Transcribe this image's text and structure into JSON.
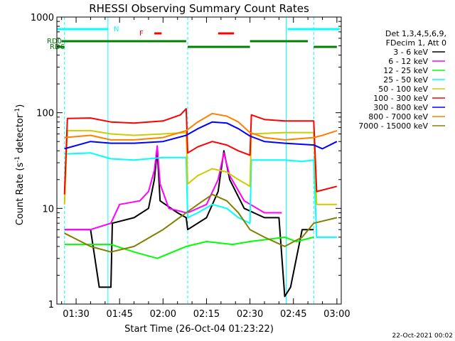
{
  "chart_data": {
    "type": "line",
    "title": "RHESSI Observing Summary Count Rates",
    "xlabel": "Start Time (26-Oct-04 01:23:22)",
    "ylabel": "Count Rate (s",
    "ylabel_sup1": "-1",
    "ylabel_mid": " detector",
    "ylabel_sup2": "-1",
    "ylabel_end": ")",
    "y_scale": "log",
    "ylim": [
      1,
      1000
    ],
    "xlim": [
      "01:23:22",
      "03:01:30"
    ],
    "y_ticks": [
      "1",
      "10",
      "100",
      "1000"
    ],
    "x_ticks": [
      "01:30",
      "01:45",
      "02:00",
      "02:15",
      "02:30",
      "02:45",
      "03:00"
    ],
    "legend_header": [
      "Det 1,3,4,5,6,9,",
      "FDecim 1, Att 0"
    ],
    "legend_position": "right",
    "footer_date": "22-Oct-2021 00:02",
    "flags": [
      {
        "label": "N",
        "color": "#00ffff",
        "segments": [
          [
            "01:23:22",
            "01:41:00"
          ],
          [
            "02:43:00",
            "03:01:00"
          ]
        ]
      },
      {
        "label": "F",
        "color": "#ff0000",
        "segments": [
          [
            "01:57:00",
            "01:59:30"
          ],
          [
            "02:19:00",
            "02:24:30"
          ]
        ]
      },
      {
        "label": "RD0",
        "color": "#008000",
        "segments": [
          [
            "01:25:00",
            "02:08:00"
          ],
          [
            "02:30:00",
            "02:50:00"
          ]
        ]
      },
      {
        "label": "RD6",
        "color": "#008000",
        "segments": [
          [
            "01:23:22",
            "01:26:00"
          ],
          [
            "02:08:30",
            "02:30:00"
          ],
          [
            "02:52:00",
            "03:00:00"
          ]
        ]
      }
    ],
    "night_intervals": [
      [
        "01:23:22",
        "01:26:00"
      ],
      [
        "01:41:00",
        "02:08:30"
      ],
      [
        "02:42:30",
        "02:52:00"
      ]
    ],
    "series": [
      {
        "name": "3 - 6 keV",
        "color": "#000000",
        "points": [
          [
            "01:26:00",
            6
          ],
          [
            "01:35:00",
            6
          ],
          [
            "01:38:00",
            1.5
          ],
          [
            "01:42:00",
            1.5
          ],
          [
            "01:42:30",
            7
          ],
          [
            "01:50:00",
            8
          ],
          [
            "01:55:00",
            10
          ],
          [
            "01:57:00",
            20
          ],
          [
            "01:58:00",
            40
          ],
          [
            "01:59:00",
            12
          ],
          [
            "02:05:00",
            9
          ],
          [
            "02:08:00",
            8
          ],
          [
            "02:08:30",
            6
          ],
          [
            "02:15:00",
            8
          ],
          [
            "02:19:00",
            15
          ],
          [
            "02:21:00",
            40
          ],
          [
            "02:23:00",
            20
          ],
          [
            "02:28:00",
            10
          ],
          [
            "02:35:00",
            8
          ],
          [
            "02:40:00",
            8
          ],
          [
            "02:42:00",
            1.2
          ],
          [
            "02:44:00",
            1.5
          ],
          [
            "02:48:00",
            6
          ],
          [
            "02:52:00",
            6
          ]
        ]
      },
      {
        "name": "6 - 12 keV",
        "color": "#ff00ff",
        "points": [
          [
            "01:26:00",
            6
          ],
          [
            "01:35:00",
            6
          ],
          [
            "01:42:00",
            7
          ],
          [
            "01:45:00",
            11
          ],
          [
            "01:52:00",
            12
          ],
          [
            "01:55:00",
            15
          ],
          [
            "01:57:00",
            25
          ],
          [
            "01:58:00",
            45
          ],
          [
            "01:59:00",
            18
          ],
          [
            "02:02:00",
            10
          ],
          [
            "02:08:00",
            9
          ],
          [
            "02:08:30",
            9
          ],
          [
            "02:15:00",
            11
          ],
          [
            "02:19:00",
            20
          ],
          [
            "02:21:00",
            38
          ],
          [
            "02:23:00",
            22
          ],
          [
            "02:28:00",
            12
          ],
          [
            "02:35:00",
            9
          ],
          [
            "02:41:00",
            9
          ]
        ]
      },
      {
        "name": "12 - 25 keV",
        "color": "#00ff00",
        "points": [
          [
            "01:26:00",
            4.2
          ],
          [
            "01:42:00",
            4.2
          ],
          [
            "01:50:00",
            3.5
          ],
          [
            "01:58:00",
            3
          ],
          [
            "02:08:00",
            4
          ],
          [
            "02:15:00",
            4.5
          ],
          [
            "02:24:00",
            4.2
          ],
          [
            "02:30:00",
            4.5
          ],
          [
            "02:42:00",
            5
          ],
          [
            "02:46:00",
            4.5
          ],
          [
            "02:52:00",
            5
          ]
        ]
      },
      {
        "name": "25 - 50 keV",
        "color": "#00ffff",
        "points": [
          [
            "01:26:00",
            37
          ],
          [
            "01:35:00",
            38
          ],
          [
            "01:42:00",
            33
          ],
          [
            "01:50:00",
            32
          ],
          [
            "02:00:00",
            34
          ],
          [
            "02:08:00",
            34
          ],
          [
            "02:08:30",
            8
          ],
          [
            "02:12:00",
            9
          ],
          [
            "02:17:00",
            11
          ],
          [
            "02:22:00",
            10
          ],
          [
            "02:26:00",
            8
          ],
          [
            "02:30:00",
            7
          ],
          [
            "02:30:30",
            32
          ],
          [
            "02:42:00",
            32
          ],
          [
            "02:48:00",
            31
          ],
          [
            "02:52:00",
            32
          ],
          [
            "02:53:00",
            5
          ],
          [
            "03:00:00",
            5
          ]
        ]
      },
      {
        "name": "50 - 100 keV",
        "color": "#cccc00",
        "points": [
          [
            "01:26:00",
            11
          ],
          [
            "01:27:00",
            65
          ],
          [
            "01:35:00",
            65
          ],
          [
            "01:42:00",
            60
          ],
          [
            "01:50:00",
            58
          ],
          [
            "02:00:00",
            60
          ],
          [
            "02:08:00",
            62
          ],
          [
            "02:08:30",
            18
          ],
          [
            "02:12:00",
            22
          ],
          [
            "02:17:00",
            26
          ],
          [
            "02:22:00",
            24
          ],
          [
            "02:26:00",
            20
          ],
          [
            "02:30:00",
            17
          ],
          [
            "02:30:30",
            60
          ],
          [
            "02:42:00",
            62
          ],
          [
            "02:52:00",
            62
          ],
          [
            "02:53:00",
            11
          ],
          [
            "03:00:00",
            11
          ]
        ]
      },
      {
        "name": "100 - 300 keV",
        "color": "#ff0000",
        "points": [
          [
            "01:26:00",
            14
          ],
          [
            "01:27:00",
            87
          ],
          [
            "01:35:00",
            88
          ],
          [
            "01:42:00",
            80
          ],
          [
            "01:50:00",
            78
          ],
          [
            "02:00:00",
            82
          ],
          [
            "02:06:00",
            95
          ],
          [
            "02:08:00",
            110
          ],
          [
            "02:08:30",
            38
          ],
          [
            "02:12:00",
            44
          ],
          [
            "02:17:00",
            50
          ],
          [
            "02:22:00",
            46
          ],
          [
            "02:26:00",
            40
          ],
          [
            "02:30:00",
            36
          ],
          [
            "02:30:30",
            95
          ],
          [
            "02:35:00",
            85
          ],
          [
            "02:42:00",
            82
          ],
          [
            "02:52:00",
            82
          ],
          [
            "02:53:00",
            15
          ],
          [
            "03:00:00",
            17
          ]
        ]
      },
      {
        "name": "300 - 800 keV",
        "color": "#0000ff",
        "points": [
          [
            "01:26:00",
            42
          ],
          [
            "01:35:00",
            50
          ],
          [
            "01:42:00",
            48
          ],
          [
            "01:50:00",
            48
          ],
          [
            "02:00:00",
            50
          ],
          [
            "02:08:00",
            58
          ],
          [
            "02:12:00",
            68
          ],
          [
            "02:17:00",
            80
          ],
          [
            "02:22:00",
            78
          ],
          [
            "02:26:00",
            68
          ],
          [
            "02:30:00",
            57
          ],
          [
            "02:35:00",
            50
          ],
          [
            "02:42:00",
            48
          ],
          [
            "02:52:00",
            46
          ],
          [
            "02:55:00",
            42
          ],
          [
            "03:00:00",
            50
          ]
        ]
      },
      {
        "name": "800 - 7000 keV",
        "color": "#ff8000",
        "points": [
          [
            "01:26:00",
            55
          ],
          [
            "01:35:00",
            58
          ],
          [
            "01:42:00",
            52
          ],
          [
            "01:50:00",
            52
          ],
          [
            "02:00:00",
            55
          ],
          [
            "02:08:00",
            65
          ],
          [
            "02:12:00",
            80
          ],
          [
            "02:17:00",
            98
          ],
          [
            "02:22:00",
            92
          ],
          [
            "02:26:00",
            80
          ],
          [
            "02:30:00",
            62
          ],
          [
            "02:35:00",
            55
          ],
          [
            "02:42:00",
            52
          ],
          [
            "02:52:00",
            55
          ],
          [
            "02:55:00",
            58
          ],
          [
            "03:00:00",
            65
          ]
        ]
      },
      {
        "name": "7000 - 15000 keV",
        "color": "#808000",
        "points": [
          [
            "01:26:00",
            5.5
          ],
          [
            "01:35:00",
            4
          ],
          [
            "01:42:00",
            3.5
          ],
          [
            "01:50:00",
            4
          ],
          [
            "02:00:00",
            6
          ],
          [
            "02:08:00",
            9
          ],
          [
            "02:12:00",
            11
          ],
          [
            "02:17:00",
            14
          ],
          [
            "02:22:00",
            12
          ],
          [
            "02:26:00",
            9
          ],
          [
            "02:30:00",
            6
          ],
          [
            "02:35:00",
            5
          ],
          [
            "02:42:00",
            4
          ],
          [
            "02:48:00",
            5
          ],
          [
            "02:52:00",
            7
          ],
          [
            "03:00:00",
            8
          ]
        ]
      }
    ]
  }
}
